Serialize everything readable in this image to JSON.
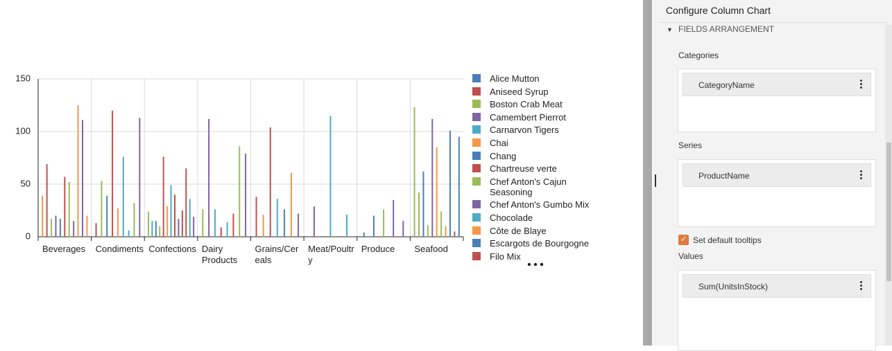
{
  "chart_data": {
    "type": "bar",
    "categories": [
      "Beverages",
      "Condiments",
      "Confections",
      "Dairy Products",
      "Grains/Cereals",
      "Meat/Poultry",
      "Produce",
      "Seafood"
    ],
    "ylim": [
      0,
      150
    ],
    "yticks": [
      0,
      50,
      100,
      150
    ],
    "grid": true,
    "bar_values": [
      [
        39,
        69,
        17,
        20,
        17,
        57,
        52,
        15,
        125,
        111,
        20
      ],
      [
        13,
        53,
        39,
        120,
        27,
        76,
        6,
        32,
        113
      ],
      [
        24,
        15,
        15,
        10,
        76,
        29,
        49,
        40,
        17,
        25,
        65,
        36,
        19
      ],
      [
        26,
        112,
        26,
        9,
        14,
        22,
        86,
        79
      ],
      [
        38,
        21,
        104,
        36,
        26,
        61,
        22
      ],
      [
        29,
        115,
        21
      ],
      [
        4,
        20,
        26,
        35,
        15
      ],
      [
        123,
        42,
        62,
        11,
        112,
        85,
        24,
        10,
        101,
        5,
        95
      ]
    ],
    "bar_colors": [
      [
        "#f79646",
        "#c0504d",
        "#9bbb59",
        "#8064a2",
        "#4a7ebb",
        "#c0504d",
        "#9bbb59",
        "#8064a2",
        "#f79646",
        "#8064a2",
        "#f79646"
      ],
      [
        "#c0504d",
        "#9bbb59",
        "#4a7ebb",
        "#c0504d",
        "#f79646",
        "#4bacc6",
        "#4bacc6",
        "#9bbb59",
        "#8064a2"
      ],
      [
        "#9bbb59",
        "#4bacc6",
        "#4a7ebb",
        "#9bbb59",
        "#c0504d",
        "#f79646",
        "#4bacc6",
        "#c0504d",
        "#8064a2",
        "#c0504d",
        "#c0504d",
        "#4bacc6",
        "#8064a2"
      ],
      [
        "#9bbb59",
        "#8064a2",
        "#4bacc6",
        "#c0504d",
        "#4bacc6",
        "#c0504d",
        "#9bbb59",
        "#8064a2"
      ],
      [
        "#c0504d",
        "#f79646",
        "#c0504d",
        "#4bacc6",
        "#4a7ebb",
        "#f79646",
        "#8064a2"
      ],
      [
        "#8064a2",
        "#4bacc6",
        "#4bacc6"
      ],
      [
        "#4a7ebb",
        "#4a7ebb",
        "#9bbb59",
        "#8064a2",
        "#8064a2"
      ],
      [
        "#9bbb59",
        "#9bbb59",
        "#4a7ebb",
        "#9bbb59",
        "#8064a2",
        "#f79646",
        "#9bbb59",
        "#f79646",
        "#4a7ebb",
        "#c0504d",
        "#4a7ebb"
      ]
    ],
    "legend": [
      {
        "name": "Alice Mutton",
        "color": "#4a7ebb"
      },
      {
        "name": "Aniseed Syrup",
        "color": "#c0504d"
      },
      {
        "name": "Boston Crab Meat",
        "color": "#9bbb59"
      },
      {
        "name": "Camembert Pierrot",
        "color": "#8064a2"
      },
      {
        "name": "Carnarvon Tigers",
        "color": "#4bacc6"
      },
      {
        "name": "Chai",
        "color": "#f79646"
      },
      {
        "name": "Chang",
        "color": "#4a7ebb"
      },
      {
        "name": "Chartreuse verte",
        "color": "#c0504d"
      },
      {
        "name": "Chef Anton's Cajun Seasoning",
        "color": "#9bbb59"
      },
      {
        "name": "Chef Anton's Gumbo Mix",
        "color": "#8064a2"
      },
      {
        "name": "Chocolade",
        "color": "#4bacc6"
      },
      {
        "name": "Côte de Blaye",
        "color": "#f79646"
      },
      {
        "name": "Escargots de Bourgogne",
        "color": "#4a7ebb"
      },
      {
        "name": "Filo Mix",
        "color": "#c0504d"
      }
    ]
  },
  "panel": {
    "title": "Configure Column Chart",
    "section": "FIELDS ARRANGEMENT",
    "categories_label": "Categories",
    "categories_field": "CategoryName",
    "series_label": "Series",
    "series_field": "ProductName",
    "tooltips_label": "Set default tooltips",
    "values_label": "Values",
    "values_field": "Sum(UnitsInStock)"
  }
}
